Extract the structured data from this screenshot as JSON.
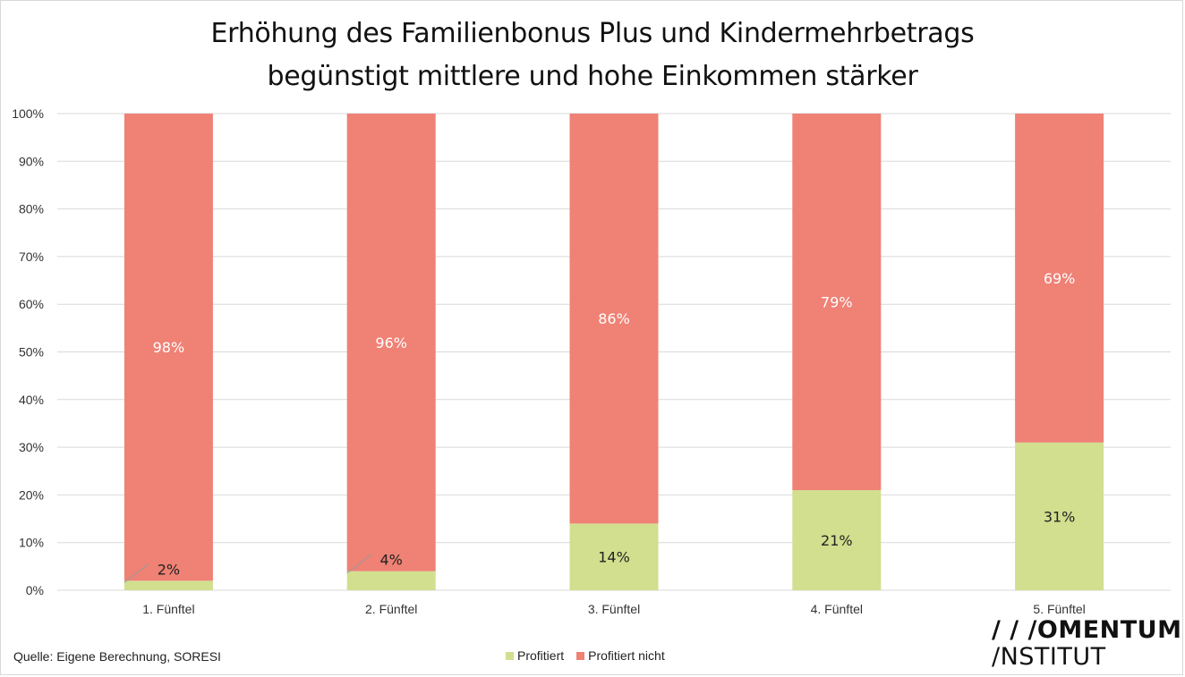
{
  "title_line1": "Erhöhung des Familienbonus Plus und Kindermehrbetrags",
  "title_line2": "begünstigt mittlere und hohe Einkommen stärker",
  "source": "Quelle: Eigene Berechnung, SORESI",
  "logo": {
    "line1": "/ / /OMENTUM",
    "line2": "/NSTITUT"
  },
  "colors": {
    "profitiert": "#d1df8e",
    "profitiert_nicht": "#ef8175",
    "grid": "#d9d9d9"
  },
  "chart_data": {
    "type": "bar",
    "stacked": true,
    "normalized": true,
    "categories": [
      "1. Fünftel",
      "2. Fünftel",
      "3. Fünftel",
      "4. Fünftel",
      "5. Fünftel"
    ],
    "series": [
      {
        "name": "Profitiert",
        "values": [
          2,
          4,
          14,
          21,
          31
        ],
        "labels": [
          "2%",
          "4%",
          "14%",
          "21%",
          "31%"
        ]
      },
      {
        "name": "Profitiert nicht",
        "values": [
          98,
          96,
          86,
          79,
          69
        ],
        "labels": [
          "98%",
          "96%",
          "86%",
          "79%",
          "69%"
        ]
      }
    ],
    "yticks": [
      "0%",
      "10%",
      "20%",
      "30%",
      "40%",
      "50%",
      "60%",
      "70%",
      "80%",
      "90%",
      "100%"
    ],
    "ylim": [
      0,
      100
    ],
    "grid": true,
    "legend": "bottom"
  }
}
